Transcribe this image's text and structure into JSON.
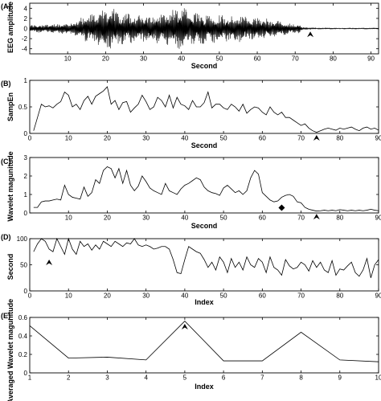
{
  "chart_data": [
    {
      "panel": "(A)",
      "type": "line",
      "ylabel": "EEG amplitude",
      "xlabel": "Second",
      "xlim": [
        0,
        92
      ],
      "ylim": [
        -5,
        5
      ],
      "xticks": [
        10,
        20,
        30,
        40,
        50,
        60,
        70,
        80,
        90
      ],
      "yticks": [
        -4,
        -2,
        0,
        2,
        4
      ],
      "grid": false,
      "envelope": {
        "t": [
          0,
          4,
          8,
          12,
          14,
          16,
          18,
          20,
          22,
          24,
          26,
          28,
          30,
          32,
          35,
          37,
          40,
          42,
          45,
          48,
          50,
          53,
          56,
          60,
          63,
          66,
          68,
          70,
          71,
          72,
          74,
          80,
          92
        ],
        "amp": [
          0.7,
          0.9,
          1.0,
          1.6,
          2.5,
          2.8,
          3.8,
          4.3,
          4.0,
          3.5,
          3.3,
          2.6,
          2.8,
          3.4,
          3.0,
          3.7,
          4.5,
          3.6,
          3.3,
          3.0,
          3.0,
          2.7,
          2.9,
          2.2,
          2.0,
          1.5,
          1.2,
          1.0,
          1.0,
          0.3,
          0.15,
          0.1,
          0.1
        ]
      },
      "annotations": [
        {
          "marker": "arrowhead",
          "x": 74,
          "y": -0.6
        }
      ]
    },
    {
      "panel": "(B)",
      "type": "line",
      "ylabel": "SampEn",
      "xlabel": "Second",
      "xlim": [
        0,
        90
      ],
      "ylim": [
        0,
        1
      ],
      "xticks": [
        0,
        10,
        20,
        30,
        40,
        50,
        60,
        70,
        80,
        90
      ],
      "yticks": [
        0,
        0.5,
        1
      ],
      "grid": false,
      "x": [
        1,
        2,
        3,
        4,
        5,
        6,
        7,
        8,
        9,
        10,
        11,
        12,
        13,
        14,
        15,
        16,
        17,
        18,
        19,
        20,
        21,
        22,
        23,
        24,
        25,
        26,
        27,
        28,
        29,
        30,
        31,
        32,
        33,
        34,
        35,
        36,
        37,
        38,
        39,
        40,
        41,
        42,
        43,
        44,
        45,
        46,
        47,
        48,
        49,
        50,
        51,
        52,
        53,
        54,
        55,
        56,
        57,
        58,
        59,
        60,
        61,
        62,
        63,
        64,
        65,
        66,
        67,
        68,
        69,
        70,
        71,
        72,
        73,
        74,
        75,
        76,
        77,
        78,
        79,
        80,
        81,
        82,
        83,
        84,
        85,
        86,
        87,
        88,
        89,
        90
      ],
      "y": [
        0.05,
        0.3,
        0.55,
        0.5,
        0.52,
        0.48,
        0.55,
        0.6,
        0.78,
        0.72,
        0.5,
        0.55,
        0.45,
        0.62,
        0.7,
        0.55,
        0.7,
        0.75,
        0.8,
        0.88,
        0.55,
        0.62,
        0.45,
        0.58,
        0.6,
        0.4,
        0.48,
        0.55,
        0.72,
        0.6,
        0.45,
        0.5,
        0.68,
        0.62,
        0.5,
        0.72,
        0.48,
        0.68,
        0.55,
        0.52,
        0.45,
        0.62,
        0.5,
        0.5,
        0.58,
        0.78,
        0.48,
        0.55,
        0.55,
        0.48,
        0.45,
        0.55,
        0.5,
        0.42,
        0.55,
        0.38,
        0.45,
        0.5,
        0.48,
        0.4,
        0.35,
        0.5,
        0.4,
        0.35,
        0.4,
        0.3,
        0.3,
        0.25,
        0.2,
        0.15,
        0.18,
        0.1,
        0.05,
        0.02,
        0.05,
        0.08,
        0.1,
        0.08,
        0.06,
        0.1,
        0.08,
        0.1,
        0.12,
        0.08,
        0.05,
        0.1,
        0.12,
        0.08,
        0.1,
        0.06
      ],
      "annotations": [
        {
          "marker": "arrowhead",
          "x": 74,
          "y": -0.03
        }
      ]
    },
    {
      "panel": "(C)",
      "type": "line",
      "ylabel": "Wavelet magunitude",
      "xlabel": "Second",
      "xlim": [
        0,
        90
      ],
      "ylim": [
        0,
        3
      ],
      "xticks": [
        10,
        20,
        30,
        40,
        50,
        60,
        70,
        80,
        90
      ],
      "yticks": [
        0,
        1,
        2,
        3
      ],
      "grid": false,
      "x": [
        1,
        2,
        3,
        4,
        5,
        6,
        7,
        8,
        9,
        10,
        11,
        12,
        13,
        14,
        15,
        16,
        17,
        18,
        19,
        20,
        21,
        22,
        23,
        24,
        25,
        26,
        27,
        28,
        29,
        30,
        31,
        32,
        33,
        34,
        35,
        36,
        37,
        38,
        39,
        40,
        41,
        42,
        43,
        44,
        45,
        46,
        47,
        48,
        49,
        50,
        51,
        52,
        53,
        54,
        55,
        56,
        57,
        58,
        59,
        60,
        61,
        62,
        63,
        64,
        65,
        66,
        67,
        68,
        69,
        70,
        71,
        72,
        73,
        74,
        75,
        76,
        77,
        78,
        79,
        80,
        81,
        82,
        83,
        84,
        85,
        86,
        87,
        88,
        89,
        90
      ],
      "y": [
        0.3,
        0.3,
        0.6,
        0.65,
        0.65,
        0.7,
        0.75,
        0.7,
        1.5,
        1.0,
        0.85,
        0.8,
        0.75,
        1.4,
        0.9,
        1.1,
        1.8,
        1.6,
        2.3,
        2.5,
        2.4,
        1.9,
        2.4,
        1.6,
        2.3,
        1.5,
        1.2,
        1.45,
        2.0,
        1.7,
        1.35,
        1.2,
        1.1,
        1.0,
        1.6,
        1.2,
        1.1,
        1.0,
        1.3,
        1.5,
        1.6,
        1.75,
        1.9,
        1.8,
        1.4,
        1.2,
        1.1,
        1.05,
        0.95,
        1.35,
        1.5,
        1.3,
        1.1,
        1.2,
        1.0,
        1.2,
        1.9,
        2.3,
        2.1,
        1.1,
        0.9,
        0.7,
        0.6,
        0.65,
        0.85,
        0.95,
        1.0,
        0.9,
        0.6,
        0.55,
        0.3,
        0.2,
        0.15,
        0.1,
        0.12,
        0.15,
        0.12,
        0.15,
        0.12,
        0.18,
        0.15,
        0.12,
        0.15,
        0.12,
        0.15,
        0.12,
        0.15,
        0.2,
        0.15,
        0.12
      ],
      "annotations": [
        {
          "marker": "diamond",
          "x": 65,
          "y": 0.28
        },
        {
          "marker": "arrowhead",
          "x": 74,
          "y": -0.05
        }
      ]
    },
    {
      "panel": "(D)",
      "type": "line",
      "ylabel": "Second",
      "xlabel": "Index",
      "xlim": [
        0,
        90
      ],
      "ylim": [
        0,
        100
      ],
      "xticks": [
        0,
        10,
        20,
        30,
        40,
        50,
        60,
        70,
        80,
        90
      ],
      "yticks": [
        0,
        50,
        100
      ],
      "grid": false,
      "x": [
        1,
        2,
        3,
        4,
        5,
        6,
        7,
        8,
        9,
        10,
        11,
        12,
        13,
        14,
        15,
        16,
        17,
        18,
        19,
        20,
        21,
        22,
        23,
        24,
        25,
        26,
        27,
        28,
        29,
        30,
        31,
        32,
        33,
        34,
        35,
        36,
        37,
        38,
        39,
        40,
        41,
        42,
        43,
        44,
        45,
        46,
        47,
        48,
        49,
        50,
        51,
        52,
        53,
        54,
        55,
        56,
        57,
        58,
        59,
        60,
        61,
        62,
        63,
        64,
        65,
        66,
        67,
        68,
        69,
        70,
        71,
        72,
        73,
        74,
        75,
        76,
        77,
        78,
        79,
        80,
        81,
        82,
        83,
        84,
        85,
        86,
        87,
        88,
        89,
        90
      ],
      "y": [
        75,
        90,
        100,
        95,
        80,
        75,
        100,
        85,
        70,
        100,
        80,
        70,
        95,
        85,
        90,
        78,
        88,
        80,
        95,
        90,
        85,
        95,
        90,
        85,
        92,
        90,
        100,
        88,
        85,
        88,
        85,
        80,
        82,
        85,
        85,
        80,
        60,
        35,
        33,
        60,
        85,
        80,
        75,
        72,
        60,
        45,
        55,
        40,
        65,
        55,
        35,
        62,
        45,
        55,
        40,
        65,
        50,
        45,
        62,
        55,
        35,
        65,
        45,
        40,
        30,
        60,
        48,
        42,
        45,
        55,
        50,
        38,
        58,
        45,
        55,
        40,
        35,
        58,
        30,
        42,
        40,
        48,
        55,
        35,
        28,
        40,
        62,
        25,
        50,
        60
      ],
      "annotations": [
        {
          "marker": "arrowhead",
          "x": 5,
          "y": 60
        }
      ]
    },
    {
      "panel": "(E)",
      "type": "line",
      "ylabel": "Averaged Wavelet magunitude",
      "xlabel": "Index",
      "xlim": [
        1,
        10
      ],
      "ylim": [
        0,
        0.6
      ],
      "xticks": [
        1,
        2,
        3,
        4,
        5,
        6,
        7,
        8,
        9,
        10
      ],
      "yticks": [
        0,
        0.2,
        0.4,
        0.6
      ],
      "grid": false,
      "x": [
        1,
        2,
        3,
        4,
        5,
        6,
        7,
        8,
        9,
        10
      ],
      "y": [
        0.51,
        0.16,
        0.17,
        0.14,
        0.56,
        0.13,
        0.13,
        0.44,
        0.14,
        0.12
      ],
      "annotations": [
        {
          "marker": "arrowhead",
          "x": 5,
          "y": 0.53
        }
      ]
    }
  ]
}
